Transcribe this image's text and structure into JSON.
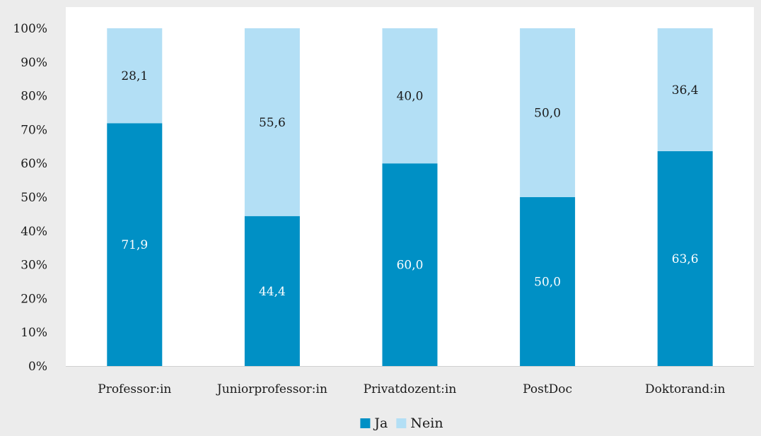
{
  "chart_data": {
    "type": "bar",
    "stacked": true,
    "percent_stacked": true,
    "categories": [
      "Professor:in",
      "Juniorprofessor:in",
      "Privatdozent:in",
      "PostDoc",
      "Doktorand:in"
    ],
    "series": [
      {
        "name": "Ja",
        "values": [
          71.9,
          44.4,
          60.0,
          50.0,
          63.6
        ],
        "labels": [
          "71,9",
          "44,4",
          "60,0",
          "50,0",
          "63,6"
        ],
        "color": "#0090c5",
        "label_color": "#ffffff"
      },
      {
        "name": "Nein",
        "values": [
          28.1,
          55.6,
          40.0,
          50.0,
          36.4
        ],
        "labels": [
          "28,1",
          "55,6",
          "40,0",
          "50,0",
          "36,4"
        ],
        "color": "#b3dff5",
        "label_color": "#1a1a1a"
      }
    ],
    "ylim": [
      0,
      100
    ],
    "yticks": [
      0,
      10,
      20,
      30,
      40,
      50,
      60,
      70,
      80,
      90,
      100
    ],
    "ytick_labels": [
      "0%",
      "10%",
      "20%",
      "30%",
      "40%",
      "50%",
      "60%",
      "70%",
      "80%",
      "90%",
      "100%"
    ],
    "grid": false,
    "legend_position": "bottom",
    "background": "#ececec",
    "plot_background": "#ffffff"
  }
}
